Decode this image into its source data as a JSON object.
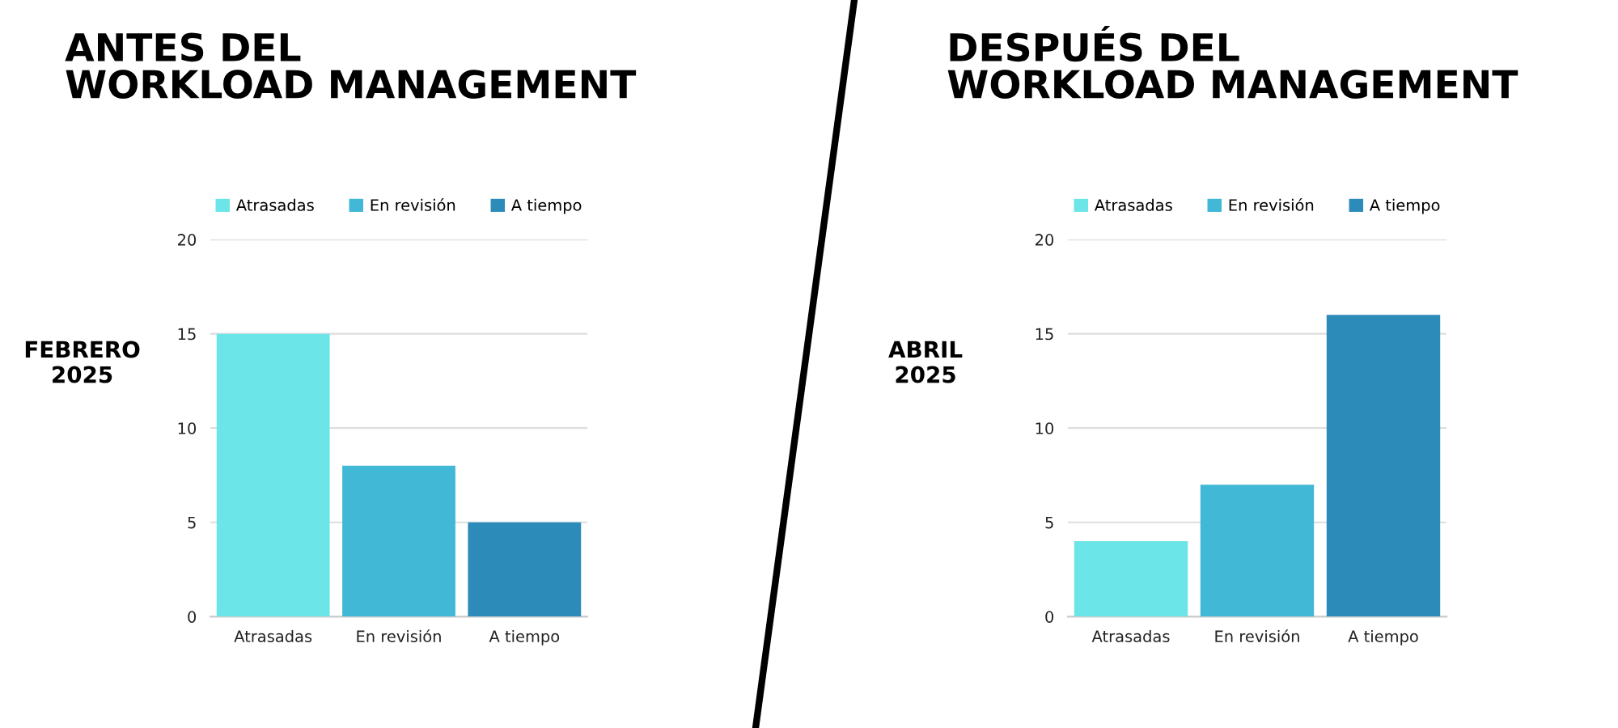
{
  "chart_data": [
    {
      "type": "bar",
      "title": "ANTES DEL\nWORKLOAD MANAGEMENT",
      "ylabel": "FEBRERO\n2025",
      "categories": [
        "Atrasadas",
        "En revisión",
        "A tiempo"
      ],
      "series": [
        {
          "name": "Atrasadas",
          "color": "#6ce5e8",
          "values": [
            15,
            null,
            null
          ]
        },
        {
          "name": "En revisión",
          "color": "#41b8d5",
          "values": [
            null,
            8,
            null
          ]
        },
        {
          "name": "A tiempo",
          "color": "#2d8bba",
          "values": [
            null,
            null,
            5
          ]
        }
      ],
      "ylim": [
        0,
        20
      ],
      "yticks": [
        0,
        5,
        10,
        15,
        20
      ],
      "grid": "y",
      "legend": "top"
    },
    {
      "type": "bar",
      "title": "DESPUÉS DEL\nWORKLOAD MANAGEMENT",
      "ylabel": "ABRIL\n2025",
      "categories": [
        "Atrasadas",
        "En revisión",
        "A tiempo"
      ],
      "series": [
        {
          "name": "Atrasadas",
          "color": "#6ce5e8",
          "values": [
            4,
            null,
            null
          ]
        },
        {
          "name": "En revisión",
          "color": "#41b8d5",
          "values": [
            null,
            7,
            null
          ]
        },
        {
          "name": "A tiempo",
          "color": "#2d8bba",
          "values": [
            null,
            null,
            16
          ]
        }
      ],
      "ylim": [
        0,
        20
      ],
      "yticks": [
        0,
        5,
        10,
        15,
        20
      ],
      "grid": "y",
      "legend": "top"
    }
  ]
}
